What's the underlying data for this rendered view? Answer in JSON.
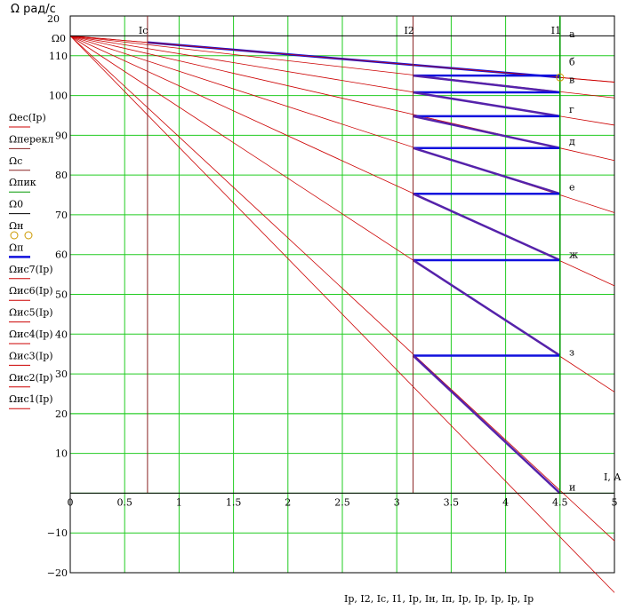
{
  "chart_data": {
    "type": "line",
    "ylabel": "Ω рад/с",
    "xlabel": "I, A",
    "xaxis_expression": "Iр, I2, Iс, I1, Iр, Iн, Iп, Iр, Iр, Iр, Iр, Iр",
    "xlim": [
      0,
      5
    ],
    "ylim": [
      -20,
      120
    ],
    "x_ticks": [
      0,
      0.5,
      1,
      1.5,
      2,
      2.5,
      3,
      3.5,
      4,
      4.5,
      5
    ],
    "x_tick_labels": [
      "0",
      "0.5",
      "1",
      "1.5",
      "2",
      "2.5",
      "3",
      "3.5",
      "4",
      "4.5",
      "5"
    ],
    "y_ticks": [
      -20,
      -10,
      10,
      20,
      30,
      40,
      50,
      60,
      70,
      80,
      90,
      100,
      110
    ],
    "y_tick_labels": [
      "−20",
      "−10",
      "10",
      "20",
      "30",
      "40",
      "50",
      "60",
      "70",
      "80",
      "90",
      "100",
      "110"
    ],
    "y_top_label": "20",
    "omega0_label": "Ω0",
    "grid": true,
    "colors": {
      "grid": "#22cc22",
      "thin": "#cc0000",
      "blue": "#1010dd",
      "purple": "#5522aa",
      "dark_red": "#882222",
      "green_line": "#009900"
    },
    "omega0": 115,
    "vertical_markers": [
      {
        "name": "Ic",
        "x": 0.71,
        "label": "Ic"
      },
      {
        "name": "I2",
        "x": 3.15,
        "label": "I2"
      },
      {
        "name": "I1",
        "x": 4.5,
        "label": "I1"
      }
    ],
    "point_labels": [
      {
        "text": "а",
        "x": 4.6,
        "y": 115.5
      },
      {
        "text": "б",
        "x": 4.6,
        "y": 108.5
      },
      {
        "text": "в",
        "x": 4.6,
        "y": 104
      },
      {
        "text": "г",
        "x": 4.6,
        "y": 96.5
      },
      {
        "text": "д",
        "x": 4.6,
        "y": 88.5
      },
      {
        "text": "е",
        "x": 4.6,
        "y": 77
      },
      {
        "text": "ж",
        "x": 4.6,
        "y": 60
      },
      {
        "text": "з",
        "x": 4.6,
        "y": 35.5
      },
      {
        "text": "и",
        "x": 4.6,
        "y": 1.5
      }
    ],
    "characteristic_slopes": [
      2.33,
      3.12,
      4.49,
      6.27,
      8.89,
      12.57,
      17.91,
      25.4,
      28.0
    ],
    "natural_line": {
      "name": "Ωес(Iр)",
      "x": [
        0,
        5
      ],
      "y": [
        115,
        103.4
      ]
    },
    "switching_steps": [
      {
        "from": 3.15,
        "to": 4.5,
        "y_start": 105.0,
        "y_end": 100.8
      },
      {
        "from": 3.15,
        "to": 4.5,
        "y_start": 100.8,
        "y_end": 94.8
      },
      {
        "from": 3.15,
        "to": 4.5,
        "y_start": 94.8,
        "y_end": 86.8
      },
      {
        "from": 3.15,
        "to": 4.5,
        "y_start": 86.8,
        "y_end": 75.3
      },
      {
        "from": 3.15,
        "to": 4.5,
        "y_start": 75.3,
        "y_end": 58.6
      },
      {
        "from": 3.15,
        "to": 4.5,
        "y_start": 58.6,
        "y_end": 34.6
      },
      {
        "from": 3.15,
        "to": 4.5,
        "y_start": 34.6,
        "y_end": 0
      }
    ],
    "rest_markers_y": [
      115,
      108.4,
      105.0
    ],
    "legend": [
      {
        "label": "Ωес(Iр)",
        "color": "#cc0000",
        "style": "thin"
      },
      {
        "label": "Ωперекл",
        "color": "#882222",
        "style": "thin"
      },
      {
        "label": "Ωс",
        "color": "#882222",
        "style": "thin"
      },
      {
        "label": "Ωпик",
        "color": "#009900",
        "style": "thin"
      },
      {
        "label": "Ω0",
        "color": "#000000",
        "style": "thin"
      },
      {
        "label": "Ωн",
        "color": "#cc9900",
        "style": "circles"
      },
      {
        "label": "Ωп",
        "color": "#1010dd",
        "style": "thick"
      },
      {
        "label": "Ωис7(Iр)",
        "color": "#cc0000",
        "style": "thin"
      },
      {
        "label": "Ωис6(Iр)",
        "color": "#cc0000",
        "style": "thin"
      },
      {
        "label": "Ωис5(Iр)",
        "color": "#cc0000",
        "style": "thin"
      },
      {
        "label": "Ωис4(Iр)",
        "color": "#cc0000",
        "style": "thin"
      },
      {
        "label": "Ωис3(Iр)",
        "color": "#cc0000",
        "style": "thin"
      },
      {
        "label": "Ωис2(Iр)",
        "color": "#cc0000",
        "style": "thin"
      },
      {
        "label": "Ωис1(Iр)",
        "color": "#cc0000",
        "style": "thin"
      }
    ]
  }
}
